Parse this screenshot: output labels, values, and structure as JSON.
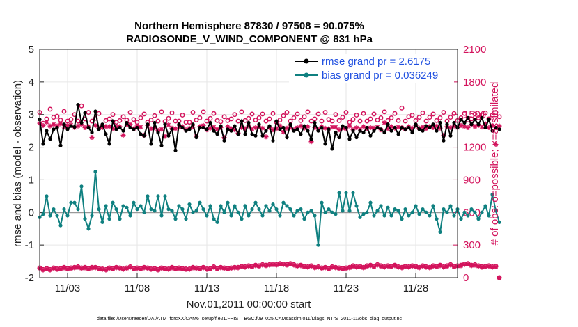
{
  "chart_data": {
    "type": "line",
    "title_line1": "Northern Hemisphere 87830 / 97508 = 90.075%",
    "title_line2": "RADIOSONDE_V_WIND_COMPONENT @ 831 hPa",
    "ylabel": "rmse and bias (model - observation)",
    "ylabel_right": "# of obs: o=possible; ×=assimilated",
    "xlabel": "Nov.01,2011 00:00:00 start",
    "footer": "data file: /Users/raeder/DAI/ATM_forcXX/CAM6_setup/f.e21.FHIST_BGC.f09_025.CAM6assim.011/Diags_NTrS_2011-11/obs_diag_output.nc",
    "ylim": [
      -2,
      5
    ],
    "yticks": [
      "-2",
      "-1",
      "0",
      "1",
      "2",
      "3",
      "4",
      "5"
    ],
    "ylim_right": [
      0,
      2100
    ],
    "yticks_right": [
      "0",
      "300",
      "600",
      "900",
      "1200",
      "1500",
      "1800",
      "2100"
    ],
    "xlim": [
      1,
      31
    ],
    "xticks": [
      {
        "day": 3,
        "label": "11/03"
      },
      {
        "day": 8,
        "label": "11/08"
      },
      {
        "day": 13,
        "label": "11/13"
      },
      {
        "day": 18,
        "label": "11/18"
      },
      {
        "day": 23,
        "label": "11/23"
      },
      {
        "day": 28,
        "label": "11/28"
      }
    ],
    "start_day": 1.0,
    "step_days": 0.25,
    "colors": {
      "rmse": "#000000",
      "bias": "#0f8080",
      "obs": "#d3135c",
      "legend_text": "#1f4fe0",
      "zero_line": "#999999"
    },
    "series": [
      {
        "name": "rmse grand pr = 2.6175",
        "key": "rmse",
        "values": [
          2.85,
          2.1,
          2.5,
          2.25,
          2.55,
          2.6,
          2.05,
          2.7,
          2.55,
          2.65,
          2.62,
          3.3,
          2.75,
          3.05,
          2.6,
          2.45,
          3.1,
          2.55,
          2.7,
          2.4,
          2.1,
          2.8,
          2.55,
          2.6,
          2.5,
          2.75,
          2.6,
          2.55,
          2.6,
          2.4,
          2.35,
          2.7,
          2.1,
          2.75,
          2.45,
          2.05,
          2.7,
          2.35,
          2.55,
          1.9,
          2.7,
          2.6,
          2.5,
          2.55,
          2.7,
          2.3,
          2.6,
          2.6,
          2.55,
          2.75,
          2.5,
          2.4,
          2.65,
          2.2,
          2.55,
          2.5,
          2.65,
          2.4,
          2.8,
          2.4,
          2.75,
          2.4,
          2.35,
          2.7,
          2.35,
          2.5,
          2.65,
          2.2,
          2.8,
          2.55,
          2.6,
          2.3,
          2.7,
          2.5,
          2.55,
          2.4,
          2.65,
          2.5,
          2.25,
          2.75,
          2.5,
          2.6,
          2.1,
          2.55,
          1.95,
          2.45,
          2.3,
          2.65,
          2.6,
          2.25,
          2.5,
          2.3,
          2.5,
          2.45,
          2.6,
          2.35,
          2.5,
          2.6,
          2.55,
          2.45,
          2.7,
          2.5,
          2.6,
          2.4,
          2.6,
          2.55,
          2.6,
          2.45,
          2.7,
          2.55,
          2.5,
          2.65,
          2.6,
          2.7,
          2.5,
          2.75,
          2.2,
          2.7,
          2.35,
          2.75,
          2.6,
          2.85,
          2.75,
          2.9,
          2.7,
          2.85,
          2.7,
          2.9,
          2.6,
          2.85,
          2.5,
          2.6,
          2.55
        ]
      },
      {
        "name": "bias grand pr = 0.036249",
        "key": "bias",
        "values": [
          -0.15,
          -0.05,
          0.5,
          -0.1,
          0.1,
          -0.1,
          -0.4,
          0.1,
          -0.1,
          0.3,
          0.3,
          0.1,
          0.8,
          -0.2,
          -0.5,
          -0.1,
          1.25,
          0.1,
          -0.3,
          0.2,
          -0.2,
          0.3,
          0.1,
          -0.2,
          0.2,
          0.15,
          -0.1,
          0.3,
          0.1,
          0.2,
          0.0,
          0.5,
          0.1,
          0.05,
          0.5,
          -0.1,
          0.5,
          0.1,
          0.05,
          -0.2,
          0.2,
          0.1,
          -0.2,
          0.25,
          0.0,
          0.05,
          0.3,
          0.1,
          -0.1,
          0.2,
          -0.2,
          -0.3,
          0.2,
          0.0,
          0.3,
          -0.1,
          0.2,
          0.0,
          -0.2,
          0.2,
          -0.1,
          0.1,
          0.3,
          0.1,
          -0.1,
          0.2,
          0.05,
          0.25,
          0.1,
          -0.1,
          0.3,
          0.2,
          0.1,
          -0.1,
          0.05,
          0.1,
          -0.2,
          0.0,
          0.05,
          -0.1,
          -1.0,
          0.3,
          0.0,
          0.1,
          0.0,
          -0.05,
          0.6,
          0.05,
          0.6,
          0.05,
          0.6,
          0.2,
          -0.15,
          -0.05,
          0.0,
          0.3,
          -0.1,
          0.05,
          0.2,
          -0.1,
          0.15,
          -0.1,
          0.1,
          0.05,
          -0.2,
          0.1,
          -0.1,
          0.0,
          0.2,
          -0.05,
          0.1,
          0.0,
          -0.1,
          0.2,
          -0.2,
          -0.6,
          0.1,
          0.0,
          0.2,
          -0.1,
          0.1,
          -0.2,
          0.0,
          -0.1,
          0.1,
          0.0,
          -0.2,
          0.0,
          0.2,
          -0.1,
          0.55,
          0.05,
          -0.3
        ]
      },
      {
        "name": "possible",
        "key": "possible",
        "values": [
          1520,
          1420,
          1460,
          1550,
          1475,
          1485,
          1450,
          1530,
          1440,
          1455,
          1500,
          1440,
          1580,
          1460,
          1520,
          1440,
          1465,
          1510,
          1395,
          1445,
          1460,
          1500,
          1430,
          1445,
          1480,
          1450,
          1520,
          1455,
          1430,
          1470,
          1505,
          1430,
          1450,
          1490,
          1440,
          1525,
          1435,
          1465,
          1515,
          1440,
          1440,
          1495,
          1430,
          1430,
          1520,
          1450,
          1470,
          1525,
          1440,
          1465,
          1510,
          1445,
          1435,
          1480,
          1445,
          1460,
          1500,
          1440,
          1525,
          1445,
          1465,
          1505,
          1450,
          1470,
          1505,
          1440,
          1460,
          1510,
          1430,
          1450,
          1490,
          1520,
          1440,
          1470,
          1505,
          1445,
          1480,
          1525,
          1440,
          1460,
          1505,
          1440,
          1520,
          1455,
          1440,
          1500,
          1445,
          1475,
          1520,
          1430,
          1455,
          1495,
          1440,
          1510,
          1440,
          1460,
          1505,
          1450,
          1470,
          1525,
          1445,
          1470,
          1510,
          1445,
          1560,
          1440,
          1480,
          1495,
          1445,
          1475,
          1515,
          1440,
          1475,
          1505,
          1445,
          1470,
          1520,
          1440,
          1475,
          1510,
          1445,
          1470,
          1510,
          1450,
          1460,
          1505,
          1470,
          1495,
          1515,
          1460,
          1495,
          1520,
          1480
        ]
      },
      {
        "name": "assimilated",
        "key": "assimilated",
        "values": [
          1420,
          1400,
          1430,
          1395,
          1410,
          1395,
          1415,
          1385,
          1400,
          1405,
          1380,
          1395,
          1410,
          1380,
          1390,
          1290,
          1400,
          1375,
          1380,
          1390,
          1390,
          1370,
          1385,
          1390,
          1310,
          1405,
          1410,
          1370,
          1395,
          1385,
          1310,
          1400,
          1370,
          1380,
          1355,
          1365,
          1300,
          1405,
          1375,
          1370,
          1385,
          1390,
          1360,
          1375,
          1385,
          1300,
          1390,
          1400,
          1360,
          1375,
          1385,
          1365,
          1380,
          1290,
          1390,
          1370,
          1360,
          1330,
          1380,
          1370,
          1395,
          1365,
          1380,
          1390,
          1375,
          1295,
          1380,
          1360,
          1370,
          1395,
          1340,
          1375,
          1385,
          1360,
          1380,
          1395,
          1375,
          1390,
          1250,
          1380,
          1365,
          1390,
          1375,
          1370,
          1385,
          1385,
          1360,
          1375,
          1370,
          1395,
          1360,
          1380,
          1365,
          1390,
          1370,
          1380,
          1375,
          1385,
          1360,
          1425,
          1370,
          1390,
          1375,
          1385,
          1380,
          1365,
          1390,
          1375,
          1400,
          1375,
          1385,
          1370,
          1390,
          1380,
          1395,
          1375,
          1310,
          1390,
          1380,
          1395,
          1380,
          1400,
          1390,
          1380,
          1410,
          1390,
          1400,
          1385,
          1415,
          1380,
          1400,
          1225,
          1395
        ]
      },
      {
        "name": "possible_low",
        "key": "possible_low",
        "values": [
          90,
          75,
          85,
          75,
          90,
          80,
          85,
          95,
          85,
          90,
          95,
          100,
          90,
          95,
          85,
          95,
          95,
          85,
          80,
          75,
          90,
          85,
          95,
          90,
          80,
          90,
          100,
          85,
          90,
          85,
          95,
          90,
          80,
          85,
          75,
          90,
          85,
          80,
          95,
          85,
          90,
          85,
          80,
          80,
          95,
          90,
          85,
          95,
          80,
          85,
          100,
          85,
          95,
          90,
          85,
          90,
          95,
          95,
          105,
          100,
          110,
          105,
          115,
          110,
          120,
          115,
          120,
          125,
          120,
          130,
          125,
          120,
          130,
          120,
          110,
          115,
          105,
          100,
          110,
          95,
          100,
          90,
          95,
          85,
          100,
          95,
          90,
          85,
          90,
          95,
          110,
          100,
          105,
          95,
          110,
          115,
          105,
          120,
          110,
          100,
          110,
          105,
          115,
          100,
          95,
          105,
          100,
          110,
          105,
          95,
          110,
          100,
          95,
          110,
          105,
          115,
          100,
          110,
          120,
          105,
          110,
          115,
          125,
          130,
          115,
          120,
          110,
          100,
          105,
          110,
          100,
          105,
          0
        ]
      },
      {
        "name": "assimilated_low",
        "key": "assimilated_low",
        "values": [
          85,
          70,
          80,
          70,
          85,
          75,
          80,
          90,
          80,
          85,
          90,
          95,
          85,
          90,
          80,
          90,
          90,
          80,
          75,
          70,
          85,
          80,
          90,
          85,
          75,
          85,
          95,
          80,
          85,
          80,
          90,
          85,
          75,
          80,
          70,
          85,
          80,
          75,
          90,
          80,
          85,
          80,
          75,
          75,
          90,
          85,
          80,
          90,
          75,
          80,
          95,
          80,
          90,
          85,
          80,
          85,
          90,
          90,
          100,
          95,
          105,
          100,
          110,
          105,
          115,
          110,
          115,
          120,
          115,
          125,
          120,
          115,
          125,
          115,
          105,
          110,
          100,
          95,
          105,
          90,
          95,
          85,
          90,
          80,
          95,
          90,
          85,
          80,
          85,
          90,
          105,
          95,
          100,
          90,
          105,
          110,
          100,
          115,
          105,
          95,
          105,
          100,
          110,
          95,
          90,
          100,
          95,
          105,
          100,
          90,
          105,
          95,
          90,
          105,
          100,
          110,
          95,
          105,
          115,
          100,
          105,
          110,
          120,
          125,
          110,
          115,
          105,
          95,
          100,
          105,
          95,
          100,
          0
        ]
      }
    ]
  }
}
